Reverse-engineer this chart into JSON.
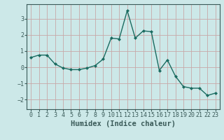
{
  "x": [
    0,
    1,
    2,
    3,
    4,
    5,
    6,
    7,
    8,
    9,
    10,
    11,
    12,
    13,
    14,
    15,
    16,
    17,
    18,
    19,
    20,
    21,
    22,
    23
  ],
  "y": [
    0.6,
    0.75,
    0.75,
    0.2,
    -0.05,
    -0.15,
    -0.15,
    -0.05,
    0.1,
    0.5,
    1.8,
    1.75,
    3.5,
    1.8,
    2.25,
    2.2,
    -0.2,
    0.45,
    -0.55,
    -1.2,
    -1.3,
    -1.3,
    -1.75,
    -1.6
  ],
  "line_color": "#1a6b60",
  "marker": "D",
  "marker_size": 2.0,
  "line_width": 1.0,
  "xlabel": "Humidex (Indice chaleur)",
  "xlabel_fontsize": 7.5,
  "xlabel_fontweight": "bold",
  "ylim": [
    -2.6,
    3.9
  ],
  "xlim": [
    -0.5,
    23.5
  ],
  "yticks": [
    -2,
    -1,
    0,
    1,
    2,
    3
  ],
  "background_color": "#cce8e8",
  "grid_color": "#c8a8a8",
  "tick_fontsize": 6.0,
  "axis_color": "#3a5a58"
}
